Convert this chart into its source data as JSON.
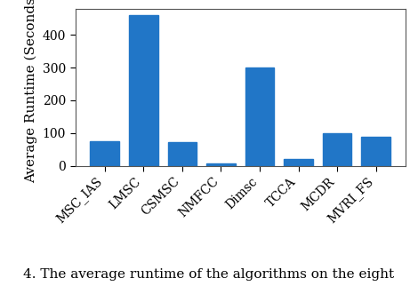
{
  "categories": [
    "MSC_IAS",
    "LMSC",
    "CSMSC",
    "NMFCC",
    "Dimsc",
    "TCCA",
    "MCDR",
    "MVRI_FS"
  ],
  "values": [
    75,
    460,
    72,
    8,
    300,
    20,
    100,
    88
  ],
  "bar_color": "#2176c7",
  "ylabel": "Average Runtime (Seconds)",
  "ylim": [
    0,
    480
  ],
  "yticks": [
    0,
    100,
    200,
    300,
    400
  ],
  "caption": "4. The average runtime of the algorithms on the eight",
  "bar_width": 0.75,
  "tick_fontsize": 10,
  "ylabel_fontsize": 11,
  "caption_fontsize": 11
}
